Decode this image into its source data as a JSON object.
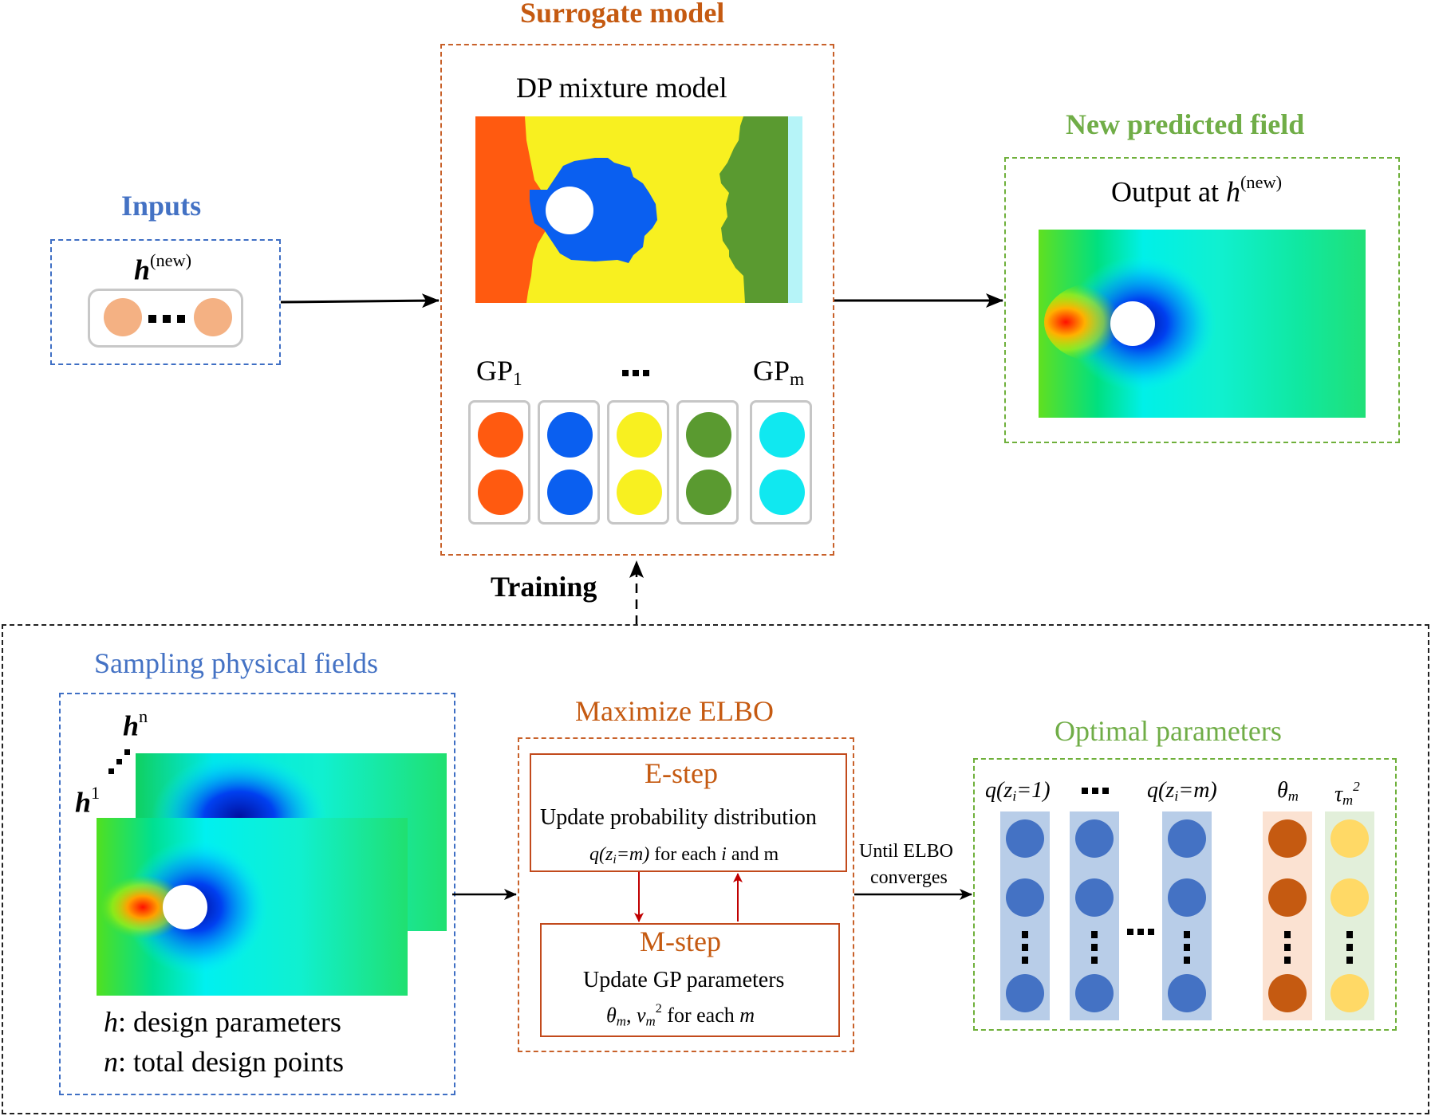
{
  "inputs": {
    "title": "Inputs",
    "h_label": "h",
    "h_sup": "(new)",
    "ellipsis": "···"
  },
  "surrogate": {
    "title": "Surrogate model",
    "dp_title": "DP mixture model",
    "gp_first": "GP",
    "gp_first_sub": "1",
    "gp_dots": "···",
    "gp_last": "GP",
    "gp_last_sub": "m",
    "gp_colors": [
      "#ff5a10",
      "#0a5ff0",
      "#f8f020",
      "#5a9a30",
      "#10e8f0"
    ]
  },
  "output": {
    "title": "New predicted field",
    "label": "Output at ",
    "h_label": "h",
    "h_sup": "(new)"
  },
  "training": {
    "label": "Training"
  },
  "sampling": {
    "title": "Sampling physical fields",
    "h_n": "h",
    "h_n_sup": "n",
    "h_1": "h",
    "h_1_sup": "1",
    "legend_h_var": "h",
    "legend_h_text": ": design parameters",
    "legend_n_var": "n",
    "legend_n_text": ": total design points"
  },
  "elbo": {
    "title": "Maximize ELBO",
    "e_step": "E-step",
    "e_desc": "Update probability distribution",
    "e_formula_pre": "q(z",
    "e_formula_sub": "i",
    "e_formula_post": "=m)",
    "e_formula_tail": " for each ",
    "e_formula_i": "i",
    "e_formula_end": " and m",
    "m_step": "M-step",
    "m_desc": "Update GP parameters",
    "m_theta": "θ",
    "m_theta_sub": "m",
    "m_sep": ", ",
    "m_v": "v",
    "m_v_sub": "m",
    "m_v_sup": "2",
    "m_tail": " for each ",
    "m_m": "m",
    "converge_1": "Until ELBO",
    "converge_2": "converges"
  },
  "optimal": {
    "title": "Optimal parameters",
    "q1_pre": "q(z",
    "q1_sub": "i",
    "q1_post": "=1)",
    "dots": "···",
    "qm_pre": "q(z",
    "qm_sub": "i",
    "qm_post": "=m)",
    "theta": "θ",
    "theta_sub": "m",
    "tau": "τ",
    "tau_sub": "m",
    "tau_sup": "2",
    "colors": {
      "q_col_bg": "#b8cde8",
      "q_dot": "#4472c4",
      "theta_bg": "#fbe2d2",
      "theta_dot": "#c55a11",
      "tau_bg": "#e2efda",
      "tau_dot": "#ffd966"
    }
  }
}
